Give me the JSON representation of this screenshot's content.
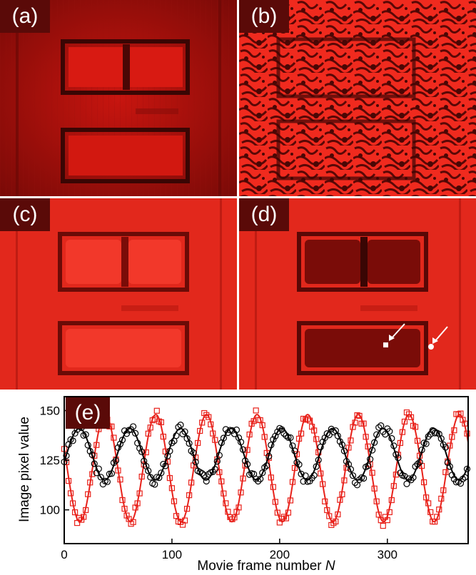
{
  "panels": {
    "a": {
      "label": "(a)"
    },
    "b": {
      "label": "(b)"
    },
    "c": {
      "label": "(c)"
    },
    "d": {
      "label": "(d)"
    },
    "e": {
      "label": "(e)"
    }
  },
  "chart_data": {
    "type": "scatter",
    "xlabel": "Movie frame number N",
    "ylabel": "Image pixel value",
    "xlim": [
      0,
      375
    ],
    "ylim": [
      83,
      157
    ],
    "xticks": [
      0,
      100,
      200,
      300
    ],
    "yticks": [
      100,
      125,
      150
    ],
    "grid": false,
    "series": [
      {
        "marker": "open-square",
        "color": "#e8211a",
        "fit_line": true,
        "mean": 121,
        "amplitude": 27,
        "period": 47,
        "phase_max_at": 38
      },
      {
        "marker": "open-circle",
        "color": "#000000",
        "fit_line": true,
        "mean": 128,
        "amplitude": 13,
        "period": 47,
        "phase_max_at": 14
      }
    ]
  },
  "colors": {
    "image_red": "#e8211a",
    "dark_red": "#5a0a08"
  }
}
